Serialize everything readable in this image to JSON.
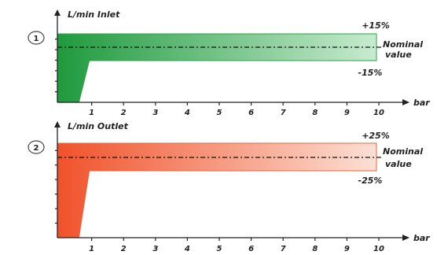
{
  "chart_data": [
    {
      "type": "area",
      "badge": "1",
      "ylabel": "L/min Inlet",
      "xlabel": "bar",
      "x_ticks": [
        "1",
        "2",
        "3",
        "4",
        "5",
        "6",
        "7",
        "8",
        "9",
        "10"
      ],
      "xlim": [
        0,
        10
      ],
      "tolerance": {
        "upper_label": "+15%",
        "lower_label": "-15%",
        "upper_pct": 15,
        "lower_pct": -15
      },
      "nominal_label": [
        "Nominal",
        "value"
      ],
      "colors": {
        "fill_dark": "#1f9a3e",
        "fill_light": "#c7ebcf",
        "stroke": "#2f9f4a"
      },
      "envelope": {
        "x": [
          0.6,
          1.0,
          10
        ],
        "upper": [
          115,
          115,
          115
        ],
        "lower": [
          0,
          85,
          85
        ],
        "nominal": 100
      }
    },
    {
      "type": "area",
      "badge": "2",
      "ylabel": "L/min Outlet",
      "xlabel": "bar",
      "x_ticks": [
        "1",
        "2",
        "3",
        "4",
        "5",
        "6",
        "7",
        "8",
        "9",
        "10"
      ],
      "xlim": [
        0,
        10
      ],
      "tolerance": {
        "upper_label": "+25%",
        "lower_label": "-25%",
        "upper_pct": 25,
        "lower_pct": -25
      },
      "nominal_label": [
        "Nominal",
        "value"
      ],
      "colors": {
        "fill_dark": "#f0522a",
        "fill_light": "#fde0d5",
        "stroke": "#e8643c"
      },
      "envelope": {
        "x": [
          0.6,
          1.0,
          10
        ],
        "upper": [
          125,
          125,
          125
        ],
        "lower": [
          0,
          75,
          75
        ],
        "nominal": 100
      }
    }
  ]
}
